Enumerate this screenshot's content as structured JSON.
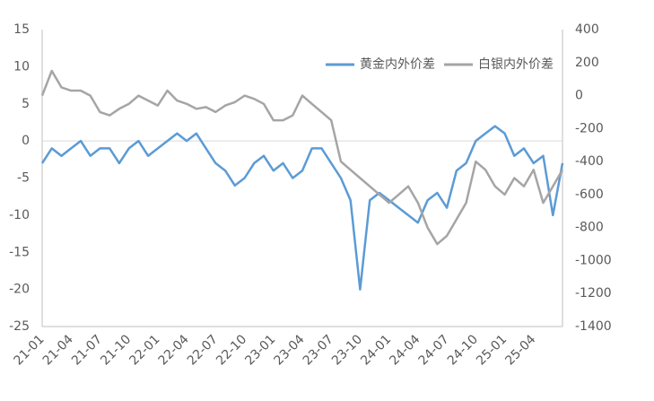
{
  "chart_data": {
    "type": "line",
    "categories": [
      "21-01",
      null,
      null,
      "21-04",
      null,
      null,
      "21-07",
      null,
      null,
      "21-10",
      null,
      null,
      "22-01",
      null,
      null,
      "22-04",
      null,
      null,
      "22-07",
      null,
      null,
      "22-10",
      null,
      null,
      "23-01",
      null,
      null,
      "23-04",
      null,
      null,
      "23-07",
      null,
      null,
      "23-10",
      null,
      null,
      "24-01",
      null,
      null,
      "24-04",
      null,
      null,
      "24-07",
      null,
      null,
      "24-10",
      null,
      null,
      "25-01",
      null,
      null,
      "25-04",
      null,
      null,
      null
    ],
    "series": [
      {
        "name": "黄金内外价差",
        "color": "#5b9bd5",
        "axis": "y",
        "values": [
          -3,
          -1,
          -2,
          -1,
          0,
          -2,
          -1,
          -1,
          -3,
          -1,
          0,
          -2,
          -1,
          0,
          1,
          0,
          1,
          -1,
          -3,
          -4,
          -6,
          -5,
          -3,
          -2,
          -4,
          -3,
          -5,
          -4,
          -1,
          -1,
          -3,
          -5,
          -8,
          -20,
          -8,
          -7,
          -8,
          -9,
          -10,
          -11,
          -8,
          -7,
          -9,
          -4,
          -3,
          0,
          1,
          2,
          1,
          -2,
          -1,
          -3,
          -2,
          -10,
          -3
        ]
      },
      {
        "name": "白银内外价差",
        "color": "#a5a5a5",
        "axis": "y2",
        "values": [
          0,
          150,
          50,
          30,
          30,
          0,
          -100,
          -120,
          -80,
          -50,
          0,
          -30,
          -60,
          30,
          -30,
          -50,
          -80,
          -70,
          -100,
          -60,
          -40,
          0,
          -20,
          -50,
          -150,
          -150,
          -120,
          0,
          -50,
          -100,
          -150,
          -400,
          -450,
          -500,
          -550,
          -600,
          -650,
          -600,
          -550,
          -650,
          -800,
          -900,
          -850,
          -750,
          -650,
          -400,
          -450,
          -550,
          -600,
          -500,
          -550,
          -450,
          -650,
          -550,
          -450
        ]
      }
    ],
    "ylim": [
      -25,
      15
    ],
    "yticks": [
      -25,
      -20,
      -15,
      -10,
      -5,
      0,
      5,
      10,
      15
    ],
    "y2lim": [
      -1400,
      400
    ],
    "y2ticks": [
      -1400,
      -1200,
      -1000,
      -800,
      -600,
      -400,
      -200,
      0,
      200,
      400
    ],
    "legend": "top-right"
  }
}
